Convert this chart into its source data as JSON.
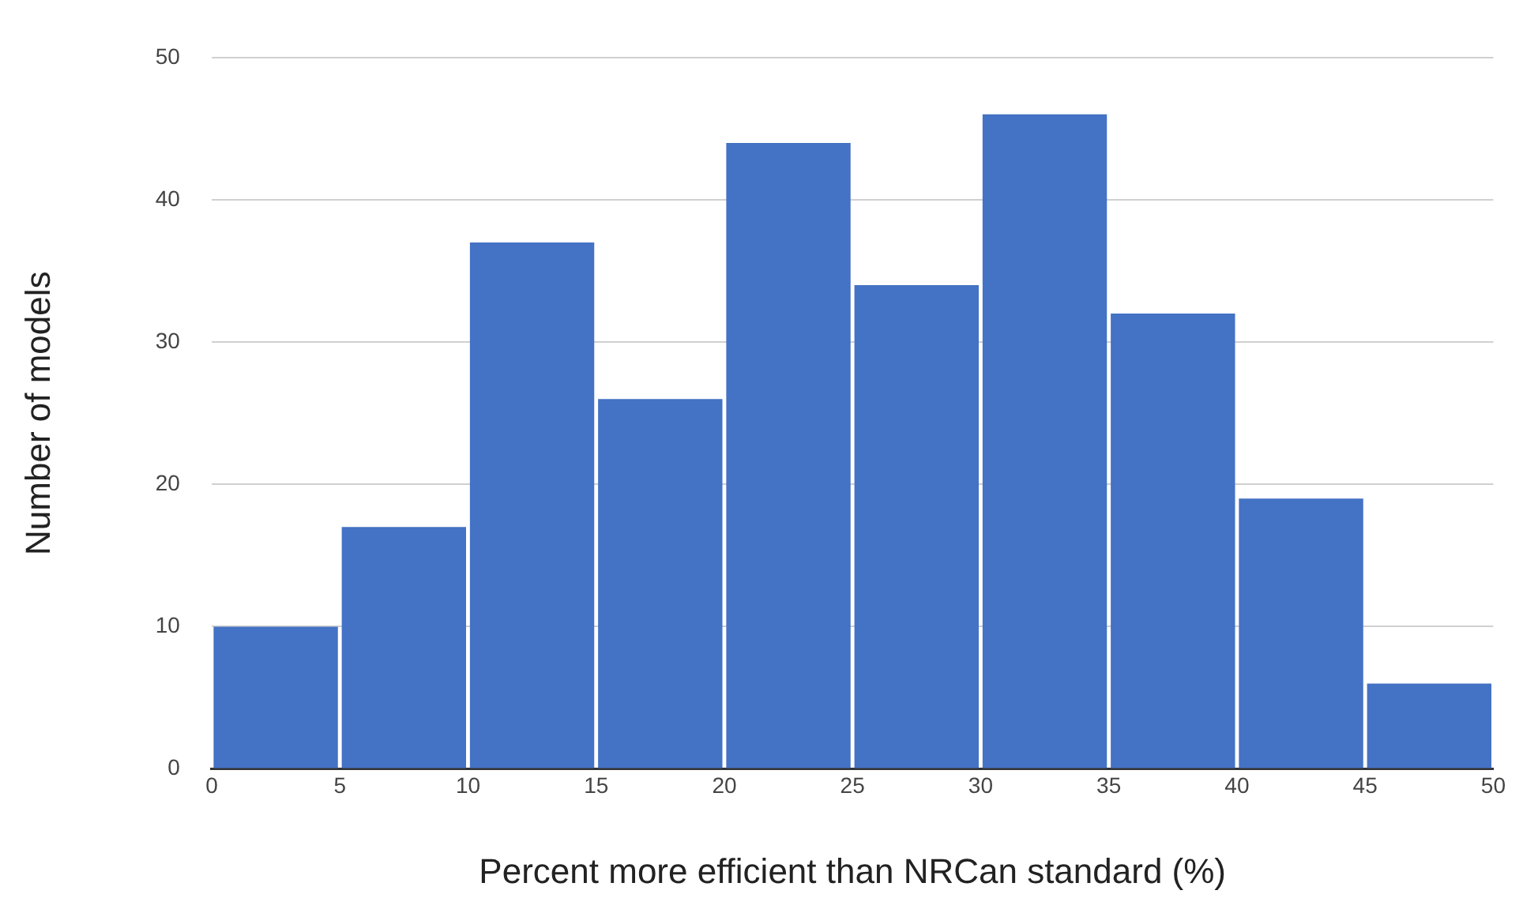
{
  "chart_data": {
    "type": "histogram",
    "xlabel": "Percent more efficient than NRCan standard (%)",
    "ylabel": "Number of models",
    "bins": [
      0,
      5,
      10,
      15,
      20,
      25,
      30,
      35,
      40,
      45,
      50
    ],
    "values": [
      10,
      17,
      37,
      26,
      44,
      34,
      46,
      32,
      19,
      6
    ],
    "color": "#4472c4",
    "xlim": [
      0,
      50
    ],
    "xticks": [
      0,
      5,
      10,
      15,
      20,
      25,
      30,
      35,
      40,
      45,
      50
    ],
    "ylim": [
      0,
      50
    ],
    "yticks": [
      0,
      10,
      20,
      30,
      40,
      50
    ],
    "grid": "y",
    "legend": false
  }
}
